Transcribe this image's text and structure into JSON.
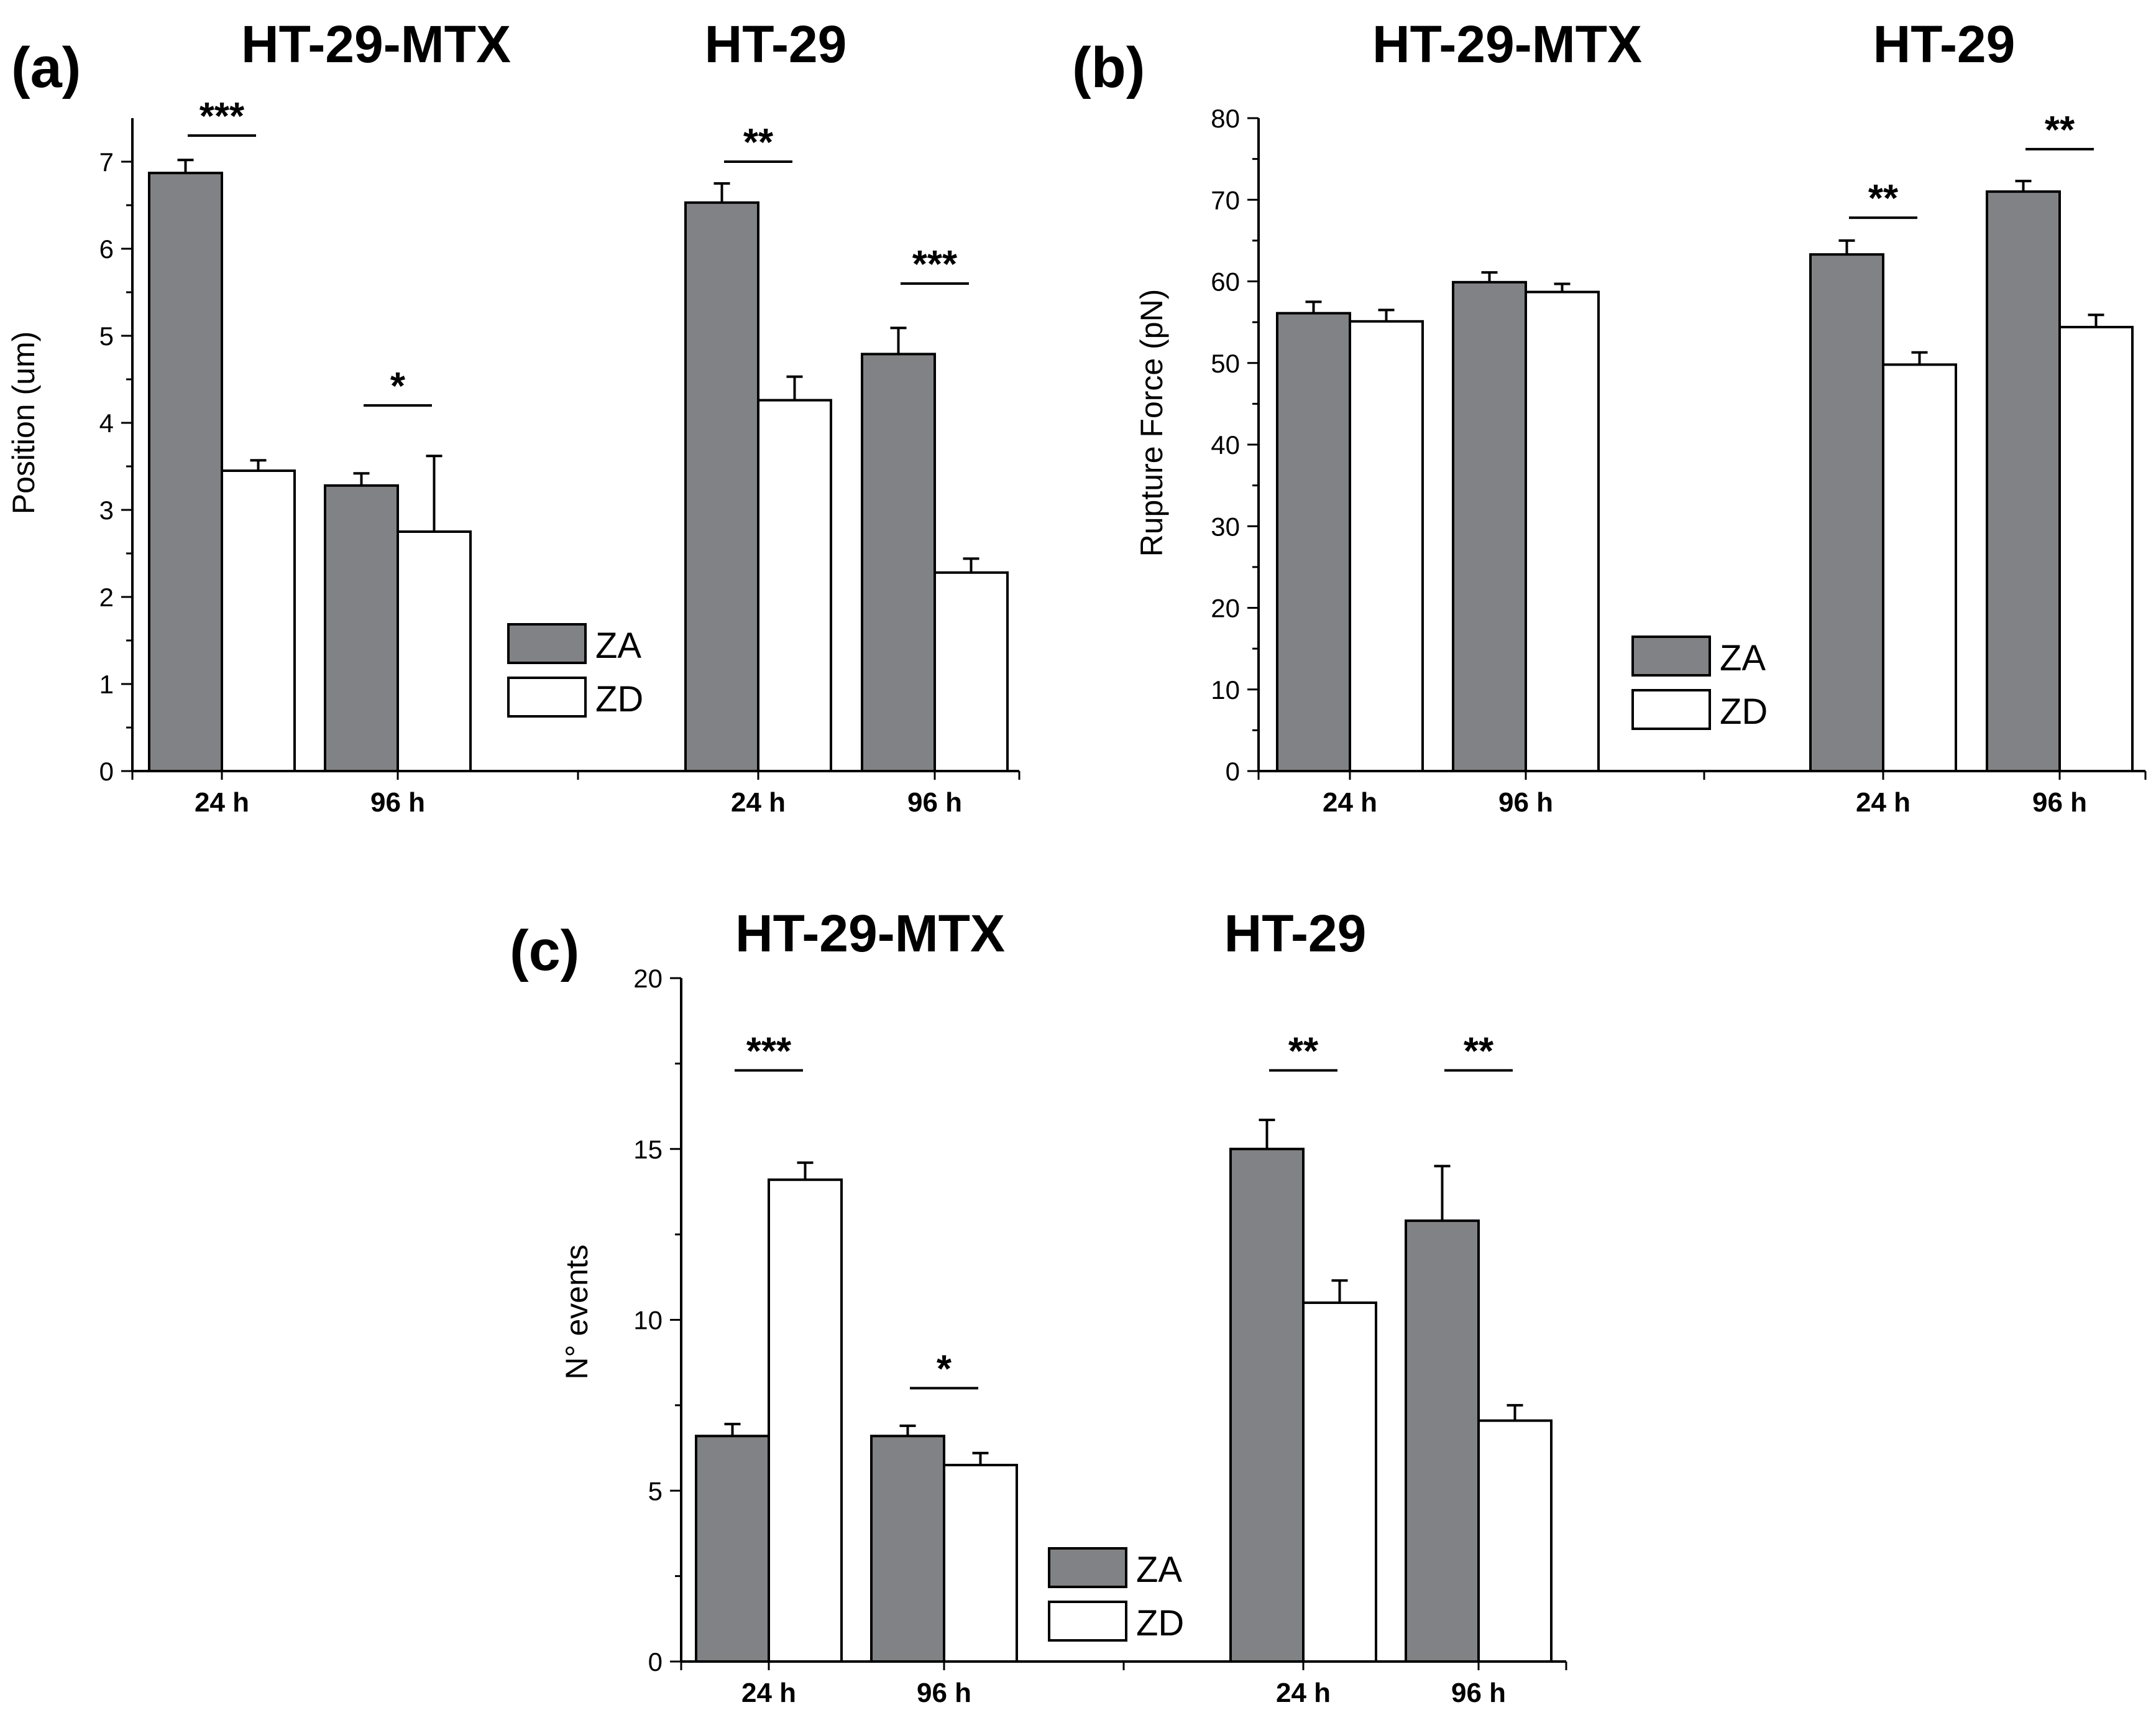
{
  "chart_data": [
    {
      "panel": "(a)",
      "type": "bar",
      "groups": [
        "HT-29-MTX",
        "HT-29"
      ],
      "categories": [
        "24 h",
        "96 h",
        "24 h",
        "96 h"
      ],
      "ylabel": "Position (um)",
      "xlabel": "",
      "ylim": [
        0,
        7.5
      ],
      "yticks": [
        0,
        1,
        2,
        3,
        4,
        5,
        6,
        7
      ],
      "series": [
        {
          "name": "ZA",
          "color": "#808285",
          "values": [
            6.87,
            3.28,
            6.53,
            4.79
          ],
          "errors": [
            0.15,
            0.14,
            0.22,
            0.3
          ]
        },
        {
          "name": "ZD",
          "color": "#ffffff",
          "values": [
            3.45,
            2.75,
            4.26,
            2.28
          ],
          "errors": [
            0.12,
            0.87,
            0.27,
            0.16
          ]
        }
      ],
      "significance": [
        {
          "category": 0,
          "label": "***",
          "y": 7.3
        },
        {
          "category": 1,
          "label": "*",
          "y": 4.2
        },
        {
          "category": 2,
          "label": "**",
          "y": 7.0
        },
        {
          "category": 3,
          "label": "***",
          "y": 5.6
        }
      ],
      "legend": [
        "ZA",
        "ZD"
      ]
    },
    {
      "panel": "(b)",
      "type": "bar",
      "groups": [
        "HT-29-MTX",
        "HT-29"
      ],
      "categories": [
        "24 h",
        "96 h",
        "24 h",
        "96 h"
      ],
      "ylabel": "Rupture Force (pN)",
      "xlabel": "",
      "ylim": [
        0,
        80
      ],
      "yticks": [
        0,
        10,
        20,
        30,
        40,
        50,
        60,
        70,
        80
      ],
      "series": [
        {
          "name": "ZA",
          "color": "#808285",
          "values": [
            56.1,
            59.9,
            63.3,
            71.0
          ],
          "errors": [
            1.4,
            1.2,
            1.7,
            1.3
          ]
        },
        {
          "name": "ZD",
          "color": "#ffffff",
          "values": [
            55.1,
            58.7,
            49.8,
            54.4
          ],
          "errors": [
            1.4,
            1.0,
            1.5,
            1.5
          ]
        }
      ],
      "significance": [
        {
          "category": 2,
          "label": "**",
          "y": 67.8
        },
        {
          "category": 3,
          "label": "**",
          "y": 76.2
        }
      ],
      "legend": [
        "ZA",
        "ZD"
      ]
    },
    {
      "panel": "(c)",
      "type": "bar",
      "groups": [
        "HT-29-MTX",
        "HT-29"
      ],
      "categories": [
        "24 h",
        "96 h",
        "24 h",
        "96 h"
      ],
      "ylabel": "N° events",
      "xlabel": "",
      "ylim": [
        0,
        20
      ],
      "yticks": [
        0,
        5,
        10,
        15,
        20
      ],
      "series": [
        {
          "name": "ZA",
          "color": "#808285",
          "values": [
            6.6,
            6.6,
            15.0,
            12.9
          ],
          "errors": [
            0.35,
            0.3,
            0.85,
            1.6
          ]
        },
        {
          "name": "ZD",
          "color": "#ffffff",
          "values": [
            14.1,
            5.75,
            10.5,
            7.05
          ],
          "errors": [
            0.5,
            0.35,
            0.65,
            0.45
          ]
        }
      ],
      "significance": [
        {
          "category": 0,
          "label": "***",
          "y": 17.3
        },
        {
          "category": 1,
          "label": "*",
          "y": 8.0
        },
        {
          "category": 2,
          "label": "**",
          "y": 17.3
        },
        {
          "category": 3,
          "label": "**",
          "y": 17.3
        }
      ],
      "legend": [
        "ZA",
        "ZD"
      ]
    }
  ]
}
